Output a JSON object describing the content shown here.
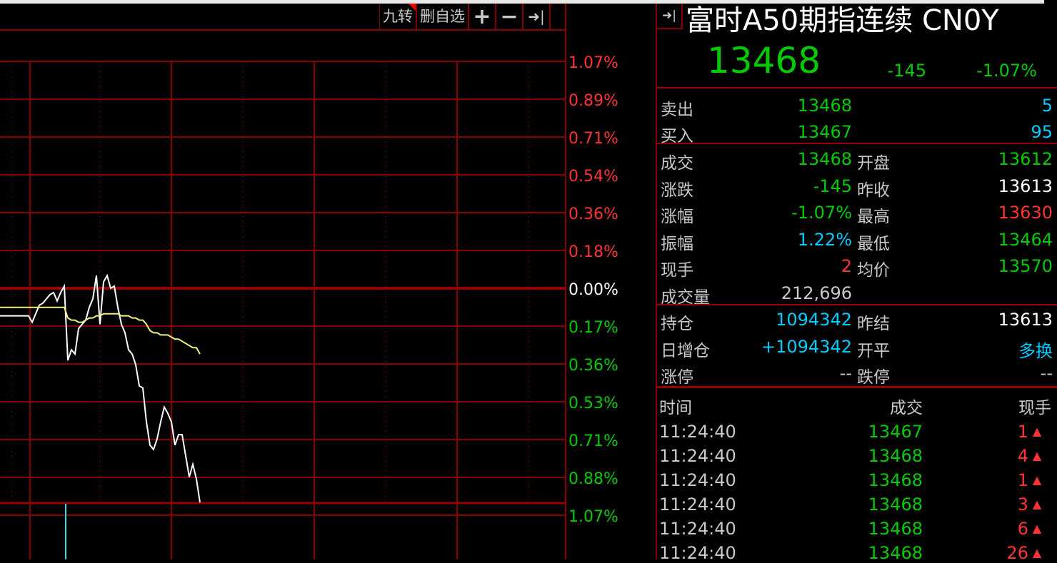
{
  "toolbar": {
    "items": [
      "九转",
      "删自选"
    ],
    "plus_icon": "plus-icon",
    "minus_icon": "minus-icon",
    "expand_icon": "arrow-right-bar-icon"
  },
  "colors": {
    "grid": "#800000",
    "up": "#ff3333",
    "down": "#00cc00",
    "price_line": "#ffffff",
    "avg_line": "#f0f080",
    "volume": "#33ddee",
    "info": "#00ccff"
  },
  "chart_data": {
    "type": "line",
    "y_ticks_up": [
      "1.07%",
      "0.89%",
      "0.71%",
      "0.54%",
      "0.36%",
      "0.18%"
    ],
    "y_tick_zero": "0.00%",
    "y_ticks_down": [
      "0.17%",
      "0.36%",
      "0.53%",
      "0.71%",
      "0.88%",
      "1.07%"
    ],
    "ylim_pct": [
      -1.07,
      1.07
    ],
    "grid": true,
    "series": [
      {
        "role": "price",
        "values_pct": [
          -0.13,
          -0.13,
          -0.13,
          -0.13,
          -0.13,
          -0.13,
          -0.13,
          -0.13,
          -0.13,
          -0.16,
          -0.12,
          -0.08,
          -0.07,
          -0.05,
          -0.03,
          -0.02,
          -0.06,
          -0.02,
          0.01,
          -0.34,
          -0.29,
          -0.31,
          -0.19,
          -0.17,
          -0.15,
          -0.09,
          -0.05,
          0.06,
          -0.17,
          0.03,
          0.06,
          0,
          0.01,
          -0.09,
          -0.17,
          -0.21,
          -0.29,
          -0.31,
          -0.36,
          -0.46,
          -0.47,
          -0.63,
          -0.74,
          -0.76,
          -0.71,
          -0.63,
          -0.56,
          -0.59,
          -0.63,
          -0.74,
          -0.69,
          -0.69,
          -0.79,
          -0.89,
          -0.83,
          -0.9,
          -1.01
        ]
      },
      {
        "role": "average",
        "values_pct": [
          -0.09,
          -0.09,
          -0.09,
          -0.09,
          -0.09,
          -0.09,
          -0.09,
          -0.09,
          -0.09,
          -0.09,
          -0.09,
          -0.09,
          -0.09,
          -0.09,
          -0.09,
          -0.09,
          -0.09,
          -0.09,
          -0.09,
          -0.14,
          -0.15,
          -0.15,
          -0.16,
          -0.16,
          -0.15,
          -0.14,
          -0.14,
          -0.13,
          -0.13,
          -0.12,
          -0.12,
          -0.12,
          -0.12,
          -0.12,
          -0.13,
          -0.13,
          -0.13,
          -0.14,
          -0.14,
          -0.15,
          -0.15,
          -0.17,
          -0.2,
          -0.21,
          -0.21,
          -0.22,
          -0.22,
          -0.22,
          -0.23,
          -0.24,
          -0.24,
          -0.25,
          -0.26,
          -0.27,
          -0.28,
          -0.28,
          -0.31
        ]
      }
    ]
  },
  "quote": {
    "title": "富时A50期指连续 CN0Y",
    "price": "13468",
    "change": "-145",
    "change_pct": "-1.07%",
    "collapse_icon": "arrow-right-bar-icon"
  },
  "orderbook": [
    {
      "label": "卖出",
      "price": "13468",
      "vol": "5"
    },
    {
      "label": "买入",
      "price": "13467",
      "vol": "95"
    }
  ],
  "stats": [
    {
      "l1": "成交",
      "v1": "13468",
      "c1": "g",
      "l2": "开盘",
      "v2": "13612",
      "c2": "g"
    },
    {
      "l1": "涨跌",
      "v1": "-145",
      "c1": "g",
      "l2": "昨收",
      "v2": "13613",
      "c2": "w"
    },
    {
      "l1": "涨幅",
      "v1": "-1.07%",
      "c1": "g",
      "l2": "最高",
      "v2": "13630",
      "c2": "r"
    },
    {
      "l1": "振幅",
      "v1": "1.22%",
      "c1": "c",
      "l2": "最低",
      "v2": "13464",
      "c2": "g"
    },
    {
      "l1": "现手",
      "v1": "2",
      "c1": "r",
      "l2": "均价",
      "v2": "13570",
      "c2": "g"
    },
    {
      "l1": "成交量",
      "v1": "212,696",
      "c1": "gr",
      "l2": "",
      "v2": "",
      "c2": "w"
    }
  ],
  "stats2": [
    {
      "l1": "持仓",
      "v1": "1094342",
      "c1": "c",
      "l2": "昨结",
      "v2": "13613",
      "c2": "w"
    },
    {
      "l1": "日增仓",
      "v1": "+1094342",
      "c1": "c",
      "l2": "开平",
      "v2": "多换",
      "c2": "c"
    },
    {
      "l1": "涨停",
      "v1": "--",
      "c1": "gr",
      "l2": "跌停",
      "v2": "--",
      "c2": "gr"
    }
  ],
  "trades": {
    "headers": [
      "时间",
      "成交",
      "现手"
    ],
    "rows": [
      [
        "11:24:40",
        "13467",
        "1"
      ],
      [
        "11:24:40",
        "13468",
        "4"
      ],
      [
        "11:24:40",
        "13468",
        "1"
      ],
      [
        "11:24:40",
        "13468",
        "3"
      ],
      [
        "11:24:40",
        "13468",
        "6"
      ],
      [
        "11:24:40",
        "13468",
        "26"
      ]
    ]
  }
}
